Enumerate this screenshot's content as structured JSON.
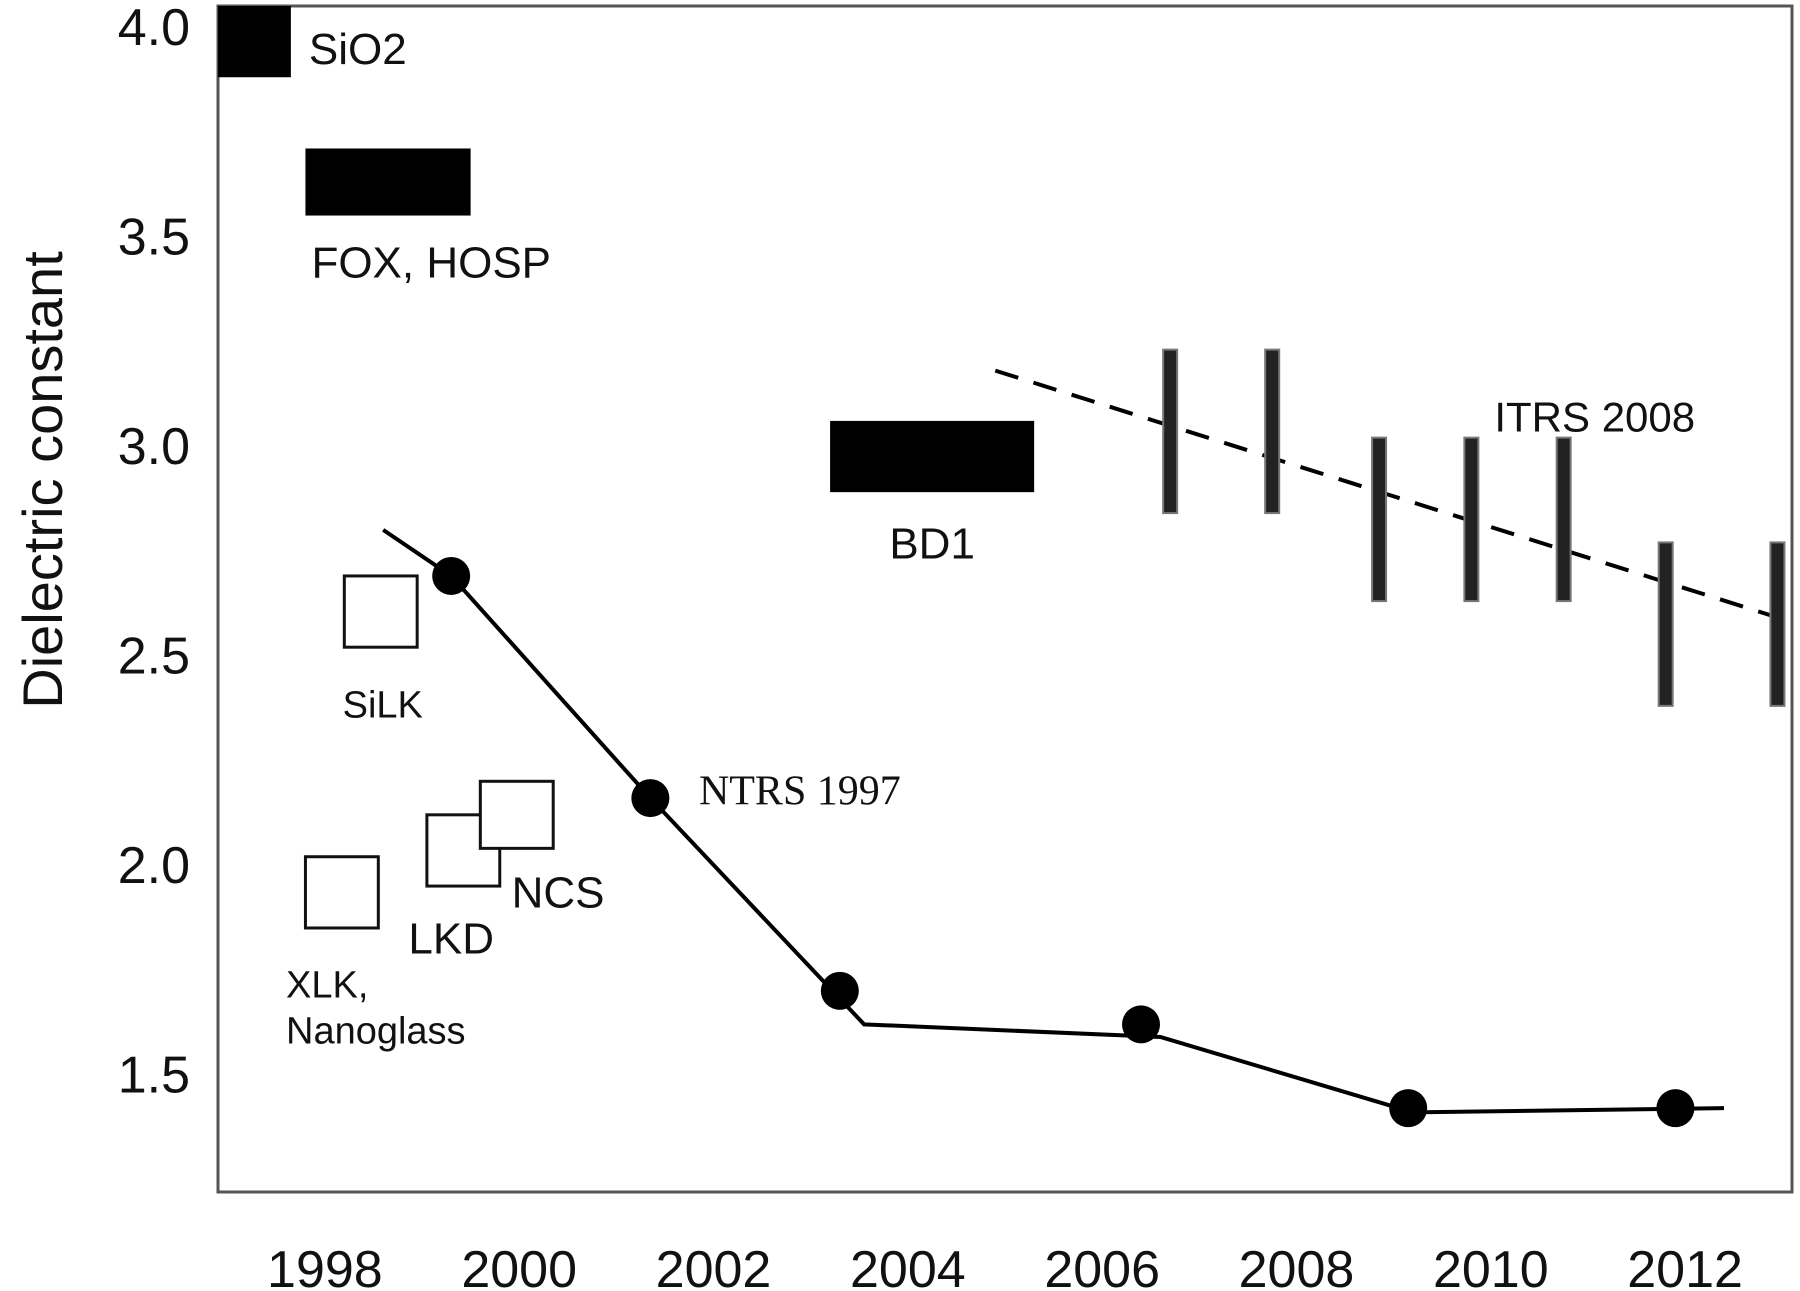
{
  "chart_data": {
    "type": "scatter",
    "title": "",
    "xlabel": "",
    "ylabel": "Dielectric constant",
    "xlim": [
      1996.9,
      2013.1
    ],
    "ylim": [
      1.22,
      4.05
    ],
    "grid": false,
    "x_ticks": [
      "1998",
      "2000",
      "2002",
      "2004",
      "2006",
      "2008",
      "2010",
      "2012"
    ],
    "y_ticks": [
      "4.0",
      "3.5",
      "3.0",
      "2.5",
      "2.0",
      "1.5"
    ],
    "materials_bars": [
      {
        "name": "SiO2",
        "x_start": 1996.9,
        "x_end": 1997.65,
        "y_low": 3.88,
        "y_high": 4.05,
        "label": "SiO2",
        "fill": "#000000"
      },
      {
        "name": "FOX, HOSP",
        "x_start": 1997.8,
        "x_end": 1999.5,
        "y_low": 3.55,
        "y_high": 3.71,
        "label": "FOX, HOSP",
        "fill": "#000000"
      },
      {
        "name": "BD1",
        "x_start": 2003.2,
        "x_end": 2005.3,
        "y_low": 2.89,
        "y_high": 3.06,
        "label": "BD1",
        "fill": "#000000"
      }
    ],
    "materials_boxes": [
      {
        "name": "SiLK",
        "x_start": 1998.2,
        "x_end": 1998.95,
        "y_low": 2.52,
        "y_high": 2.69,
        "label": "SiLK"
      },
      {
        "name": "XLK, Nanoglass",
        "x_start": 1997.8,
        "x_end": 1998.55,
        "y_low": 1.85,
        "y_high": 2.02,
        "label_lines": [
          "XLK,",
          "Nanoglass"
        ]
      },
      {
        "name": "LKD",
        "x_start": 1999.05,
        "x_end": 1999.8,
        "y_low": 1.95,
        "y_high": 2.12,
        "label": "LKD"
      },
      {
        "name": "NCS",
        "x_start": 1999.6,
        "x_end": 2000.35,
        "y_low": 2.04,
        "y_high": 2.2,
        "label": "NCS"
      }
    ],
    "series": [
      {
        "name": "NTRS 1997",
        "label": "NTRS 1997",
        "style": "solid",
        "color": "#000000",
        "line": [
          [
            1998.6,
            2.8
          ],
          [
            1999.3,
            2.69
          ],
          [
            2001.35,
            2.16
          ],
          [
            2003.55,
            1.62
          ],
          [
            2006.6,
            1.59
          ],
          [
            2009.2,
            1.41
          ],
          [
            2012.4,
            1.42
          ]
        ],
        "points": [
          [
            1999.3,
            2.69
          ],
          [
            2001.35,
            2.16
          ],
          [
            2003.3,
            1.7
          ],
          [
            2006.4,
            1.62
          ],
          [
            2009.15,
            1.42
          ],
          [
            2011.9,
            1.42
          ]
        ]
      },
      {
        "name": "ITRS 2008",
        "label": "ITRS 2008",
        "style": "dashed",
        "color": "#000000",
        "line": [
          [
            2004.9,
            3.18
          ],
          [
            2013.1,
            2.58
          ]
        ],
        "ranges": [
          {
            "x": 2006.7,
            "low": 2.84,
            "high": 3.23
          },
          {
            "x": 2007.75,
            "low": 2.84,
            "high": 3.23
          },
          {
            "x": 2008.85,
            "low": 2.63,
            "high": 3.02
          },
          {
            "x": 2009.8,
            "low": 2.63,
            "high": 3.02
          },
          {
            "x": 2010.75,
            "low": 2.63,
            "high": 3.02
          },
          {
            "x": 2011.8,
            "low": 2.38,
            "high": 2.77
          },
          {
            "x": 2012.95,
            "low": 2.38,
            "high": 2.77
          }
        ]
      }
    ]
  }
}
